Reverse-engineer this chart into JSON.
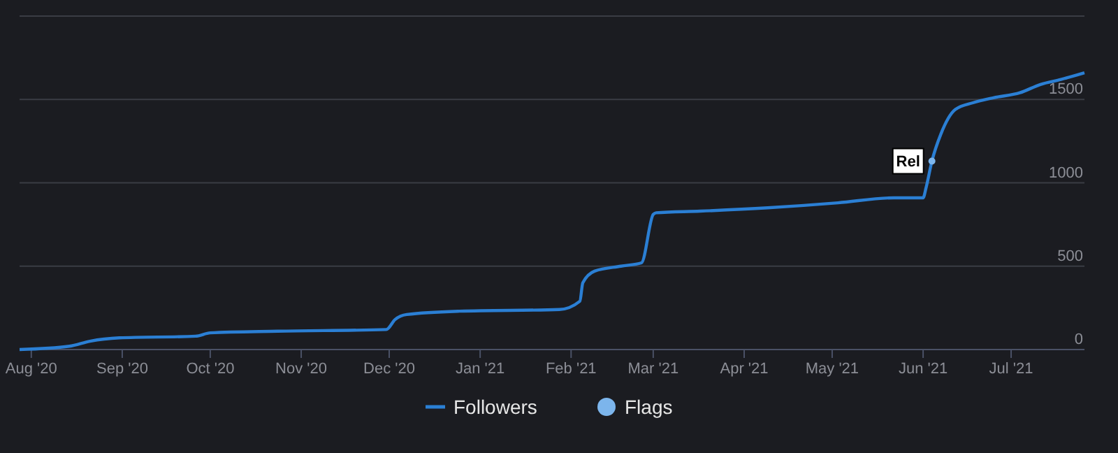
{
  "chart_data": {
    "type": "line",
    "x": [
      "2020-07-28",
      "2020-08-14",
      "2020-08-21",
      "2020-08-31",
      "2020-09-26",
      "2020-10-01",
      "2020-10-24",
      "2020-11-30",
      "2020-12-03",
      "2020-12-07",
      "2020-12-25",
      "2021-01-28",
      "2021-02-04",
      "2021-02-05",
      "2021-02-09",
      "2021-02-18",
      "2021-02-25",
      "2021-03-01",
      "2021-03-02",
      "2021-03-17",
      "2021-04-09",
      "2021-05-03",
      "2021-05-22",
      "2021-06-01",
      "2021-06-02",
      "2021-06-04",
      "2021-06-07",
      "2021-06-12",
      "2021-06-18",
      "2021-06-25",
      "2021-07-04",
      "2021-07-11",
      "2021-07-18",
      "2021-07-26"
    ],
    "series": [
      {
        "name": "Followers",
        "color": "#2b7fd4",
        "values": [
          0,
          20,
          50,
          70,
          80,
          100,
          110,
          120,
          180,
          210,
          230,
          240,
          290,
          400,
          470,
          500,
          520,
          810,
          820,
          830,
          850,
          880,
          910,
          910,
          970,
          1130,
          1290,
          1440,
          1480,
          1510,
          1540,
          1590,
          1620,
          1660
        ]
      },
      {
        "name": "Flags",
        "type": "scatter",
        "color": "#7cb5ec",
        "x": [
          "2021-06-04"
        ],
        "values": [
          1130
        ],
        "value_labels": [
          "Rel"
        ]
      }
    ],
    "xlim": [
      "2020-07-28",
      "2021-07-26"
    ],
    "xticks": [
      {
        "value": "2020-08-01",
        "label": "Aug '20"
      },
      {
        "value": "2020-09-01",
        "label": "Sep '20"
      },
      {
        "value": "2020-10-01",
        "label": "Oct '20"
      },
      {
        "value": "2020-11-01",
        "label": "Nov '20"
      },
      {
        "value": "2020-12-01",
        "label": "Dec '20"
      },
      {
        "value": "2021-01-01",
        "label": "Jan '21"
      },
      {
        "value": "2021-02-01",
        "label": "Feb '21"
      },
      {
        "value": "2021-03-01",
        "label": "Mar '21"
      },
      {
        "value": "2021-04-01",
        "label": "Apr '21"
      },
      {
        "value": "2021-05-01",
        "label": "May '21"
      },
      {
        "value": "2021-06-01",
        "label": "Jun '21"
      },
      {
        "value": "2021-07-01",
        "label": "Jul '21"
      }
    ],
    "ylim": [
      0,
      2000
    ],
    "yticks": [
      0,
      500,
      1000,
      1500,
      {
        "value": 2000,
        "label": null
      }
    ],
    "grid": "y",
    "legend": "bottom"
  }
}
